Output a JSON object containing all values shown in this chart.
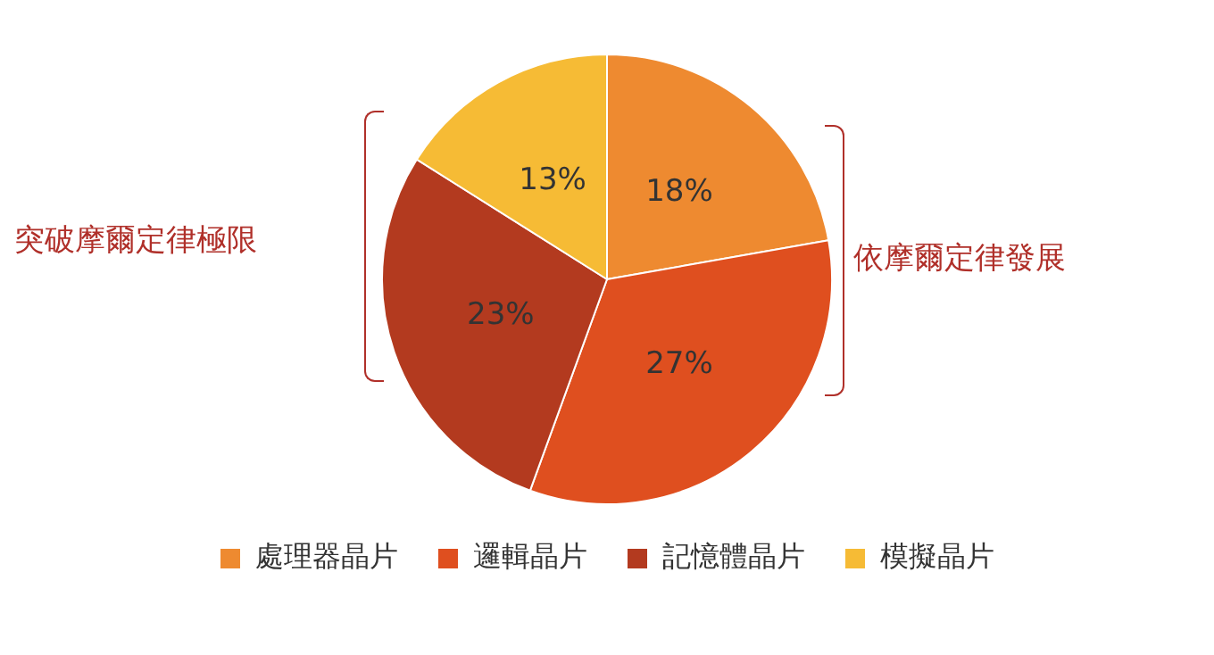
{
  "chart_data": {
    "type": "pie",
    "categories": [
      "處理器晶片",
      "邏輯晶片",
      "記憶體晶片",
      "模擬晶片"
    ],
    "values": [
      18,
      27,
      23,
      13
    ],
    "colors": [
      "#ee8a30",
      "#df4f1f",
      "#b33a1f",
      "#f6bb35"
    ],
    "value_labels": [
      "18%",
      "27%",
      "23%",
      "13%"
    ],
    "annotations": [
      "突破摩爾定律極限",
      "依摩爾定律發展"
    ],
    "legend": "bottom"
  }
}
